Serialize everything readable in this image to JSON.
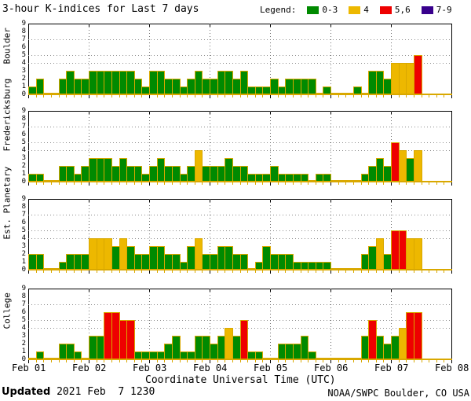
{
  "title": "3-hour K-indices for Last 7 days",
  "legend": {
    "label": "Legend:",
    "items": [
      {
        "label": "0-3",
        "color": "#008a00"
      },
      {
        "label": "4",
        "color": "#edb800"
      },
      {
        "label": "5,6",
        "color": "#ee0000"
      },
      {
        "label": "7-9",
        "color": "#38008c"
      }
    ]
  },
  "footer": {
    "updated_label": "Updated",
    "updated_value": " 2021 Feb  7 1230",
    "credit": "NOAA/SWPC Boulder, CO USA"
  },
  "chart_data": {
    "type": "bar",
    "title": "3-hour K-indices for Last 7 days",
    "xlabel": "Coordinate Universal Time (UTC)",
    "x_tick_labels": [
      "Feb 01",
      "Feb 02",
      "Feb 03",
      "Feb 04",
      "Feb 05",
      "Feb 06",
      "Feb 07",
      "Feb 08"
    ],
    "y_tick_labels": [
      "0",
      "1",
      "2",
      "3",
      "4",
      "5",
      "6",
      "7",
      "8",
      "9"
    ],
    "ylim": [
      0,
      9
    ],
    "dotted_levels": [
      4,
      5,
      7
    ],
    "bars_per_day": 8,
    "bar_interval_hours": 3,
    "grid": "day boundaries dotted",
    "legend_position": "top-right",
    "color_rules": [
      {
        "range": [
          0,
          3
        ],
        "color": "#008a00"
      },
      {
        "range": [
          4,
          4
        ],
        "color": "#edb800"
      },
      {
        "range": [
          5,
          6
        ],
        "color": "#ee0000"
      },
      {
        "range": [
          7,
          9
        ],
        "color": "#38008c"
      }
    ],
    "outline_color": "#d9a800",
    "panels": [
      {
        "station": "Boulder",
        "values": [
          1,
          2,
          0,
          0,
          2,
          3,
          2,
          2,
          3,
          3,
          3,
          3,
          3,
          3,
          2,
          1,
          3,
          3,
          2,
          2,
          1,
          2,
          3,
          2,
          2,
          3,
          3,
          2,
          3,
          1,
          1,
          1,
          2,
          1,
          2,
          2,
          2,
          2,
          0,
          1,
          0,
          0,
          0,
          1,
          0,
          3,
          3,
          2,
          4,
          4,
          4,
          5
        ]
      },
      {
        "station": "Fredericksburg",
        "values": [
          1,
          1,
          0,
          0,
          2,
          2,
          1,
          2,
          3,
          3,
          3,
          2,
          3,
          2,
          2,
          1,
          2,
          3,
          2,
          2,
          1,
          2,
          4,
          2,
          2,
          2,
          3,
          2,
          2,
          1,
          1,
          1,
          2,
          1,
          1,
          1,
          1,
          0,
          1,
          1,
          0,
          0,
          0,
          0,
          1,
          2,
          3,
          2,
          5,
          4,
          3,
          4
        ]
      },
      {
        "station": "Est. Planetary",
        "values": [
          2,
          2,
          0,
          0,
          1,
          2,
          2,
          2,
          4,
          4,
          4,
          3,
          4,
          3,
          2,
          2,
          3,
          3,
          2,
          2,
          1,
          3,
          4,
          2,
          2,
          3,
          3,
          2,
          2,
          0,
          1,
          3,
          2,
          2,
          2,
          1,
          1,
          1,
          1,
          1,
          0,
          0,
          0,
          0,
          2,
          3,
          4,
          2,
          5,
          5,
          4,
          4
        ]
      },
      {
        "station": "College",
        "values": [
          0,
          1,
          0,
          0,
          2,
          2,
          1,
          0,
          3,
          3,
          6,
          6,
          5,
          5,
          1,
          1,
          1,
          1,
          2,
          3,
          1,
          1,
          3,
          3,
          2,
          3,
          4,
          3,
          5,
          1,
          1,
          0,
          0,
          2,
          2,
          2,
          3,
          1,
          0,
          0,
          0,
          0,
          0,
          0,
          3,
          5,
          3,
          2,
          3,
          4,
          6,
          6
        ]
      }
    ]
  }
}
